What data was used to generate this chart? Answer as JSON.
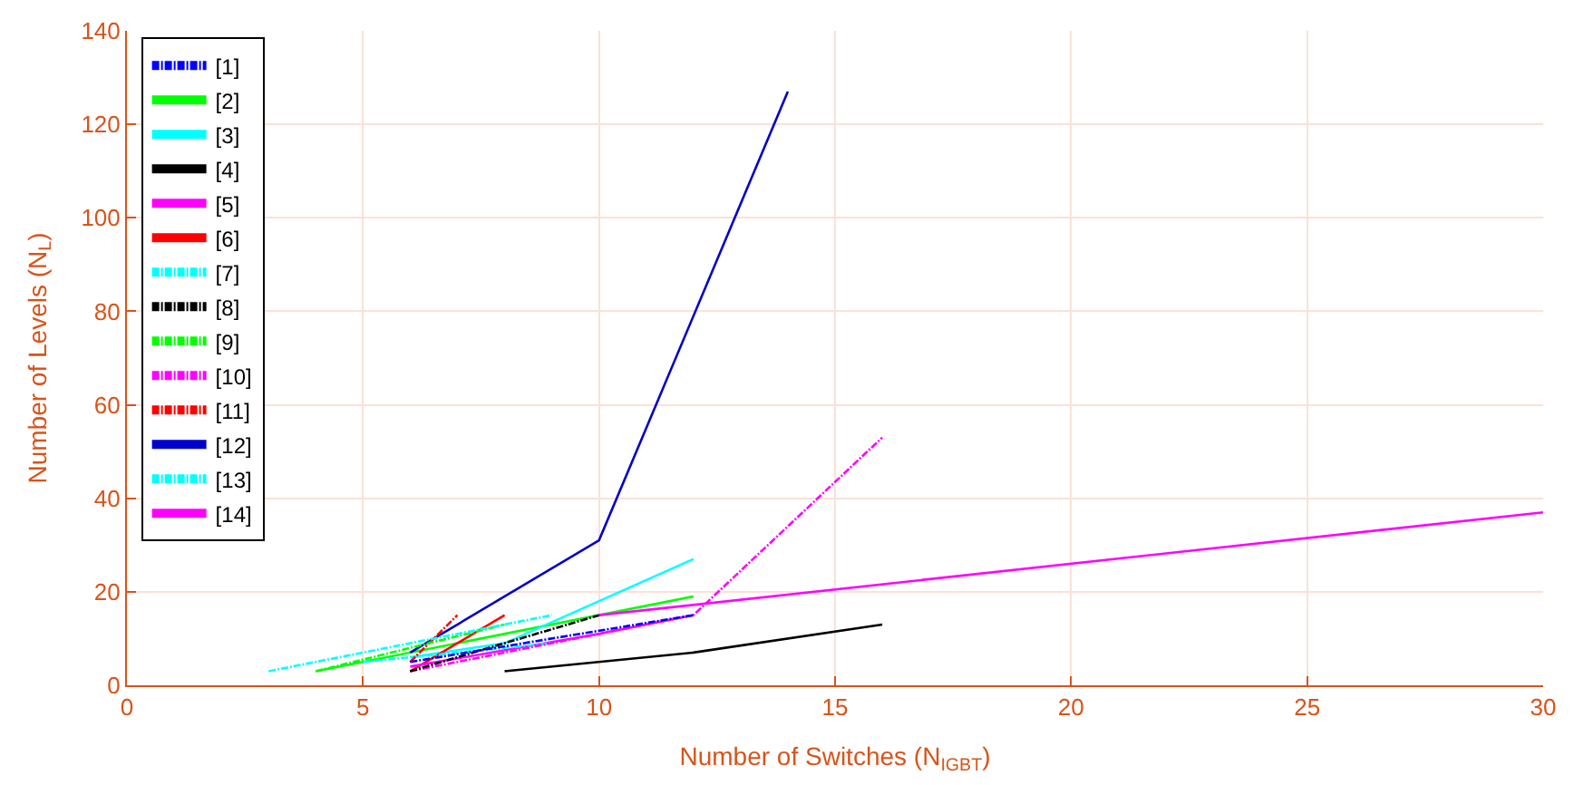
{
  "chart_data": {
    "type": "line",
    "xlabel": "Number of Switches (N$_{IGBT}$)",
    "ylabel": "Number of Levels (N$_{L}$)",
    "xlim": [
      0,
      30
    ],
    "xticks": [
      0,
      5,
      10,
      15,
      20,
      25,
      30
    ],
    "ylim": [
      0,
      140
    ],
    "yticks": [
      0,
      20,
      40,
      60,
      80,
      100,
      120,
      140
    ],
    "grid": true,
    "legend": "top left",
    "marker": "none",
    "series": [
      {
        "name": "[1]",
        "color": "#0000ff",
        "line_style": "dashdot",
        "x": [
          6,
          12
        ],
        "values": [
          5,
          15
        ]
      },
      {
        "name": "[2]",
        "color": "#00ff00",
        "line_style": "solid",
        "x": [
          4,
          12
        ],
        "values": [
          3,
          19
        ]
      },
      {
        "name": "[3]",
        "color": "#00ffff",
        "line_style": "solid",
        "x": [
          6,
          8,
          12
        ],
        "values": [
          6,
          9,
          27
        ]
      },
      {
        "name": "[4]",
        "color": "#000000",
        "line_style": "solid",
        "x": [
          8,
          12,
          16
        ],
        "values": [
          3,
          7,
          13
        ]
      },
      {
        "name": "[5]",
        "color": "#ff00ff",
        "line_style": "solid",
        "x": [
          10,
          30
        ],
        "values": [
          15,
          37
        ]
      },
      {
        "name": "[6]",
        "color": "#ff0000",
        "line_style": "solid",
        "x": [
          6,
          8
        ],
        "values": [
          3,
          15
        ]
      },
      {
        "name": "[7]",
        "color": "#00ffff",
        "line_style": "dashdot",
        "x": [
          3,
          9
        ],
        "values": [
          3,
          15
        ]
      },
      {
        "name": "[8]",
        "color": "#000000",
        "line_style": "dashdot",
        "x": [
          6,
          10
        ],
        "values": [
          3,
          15
        ]
      },
      {
        "name": "[9]",
        "color": "#00ff00",
        "line_style": "dashdot",
        "x": [
          4,
          8
        ],
        "values": [
          3,
          13
        ]
      },
      {
        "name": "[10]",
        "color": "#ff00ff",
        "line_style": "dashdot",
        "x": [
          6,
          12,
          16
        ],
        "values": [
          3,
          15,
          53
        ]
      },
      {
        "name": "[11]",
        "color": "#ff0000",
        "line_style": "dashdot",
        "x": [
          6,
          7
        ],
        "values": [
          5,
          15
        ]
      },
      {
        "name": "[12]",
        "color": "#0000cc",
        "line_style": "solid",
        "x": [
          6,
          10,
          14
        ],
        "values": [
          7,
          31,
          127
        ]
      },
      {
        "name": "[13]",
        "color": "#00ffff",
        "line_style": "dashdot",
        "x": [
          5,
          9
        ],
        "values": [
          5,
          9
        ]
      },
      {
        "name": "[14]",
        "color": "#ff00ff",
        "line_style": "solid",
        "x": [
          6,
          10,
          12
        ],
        "values": [
          4,
          11,
          15
        ]
      }
    ]
  }
}
